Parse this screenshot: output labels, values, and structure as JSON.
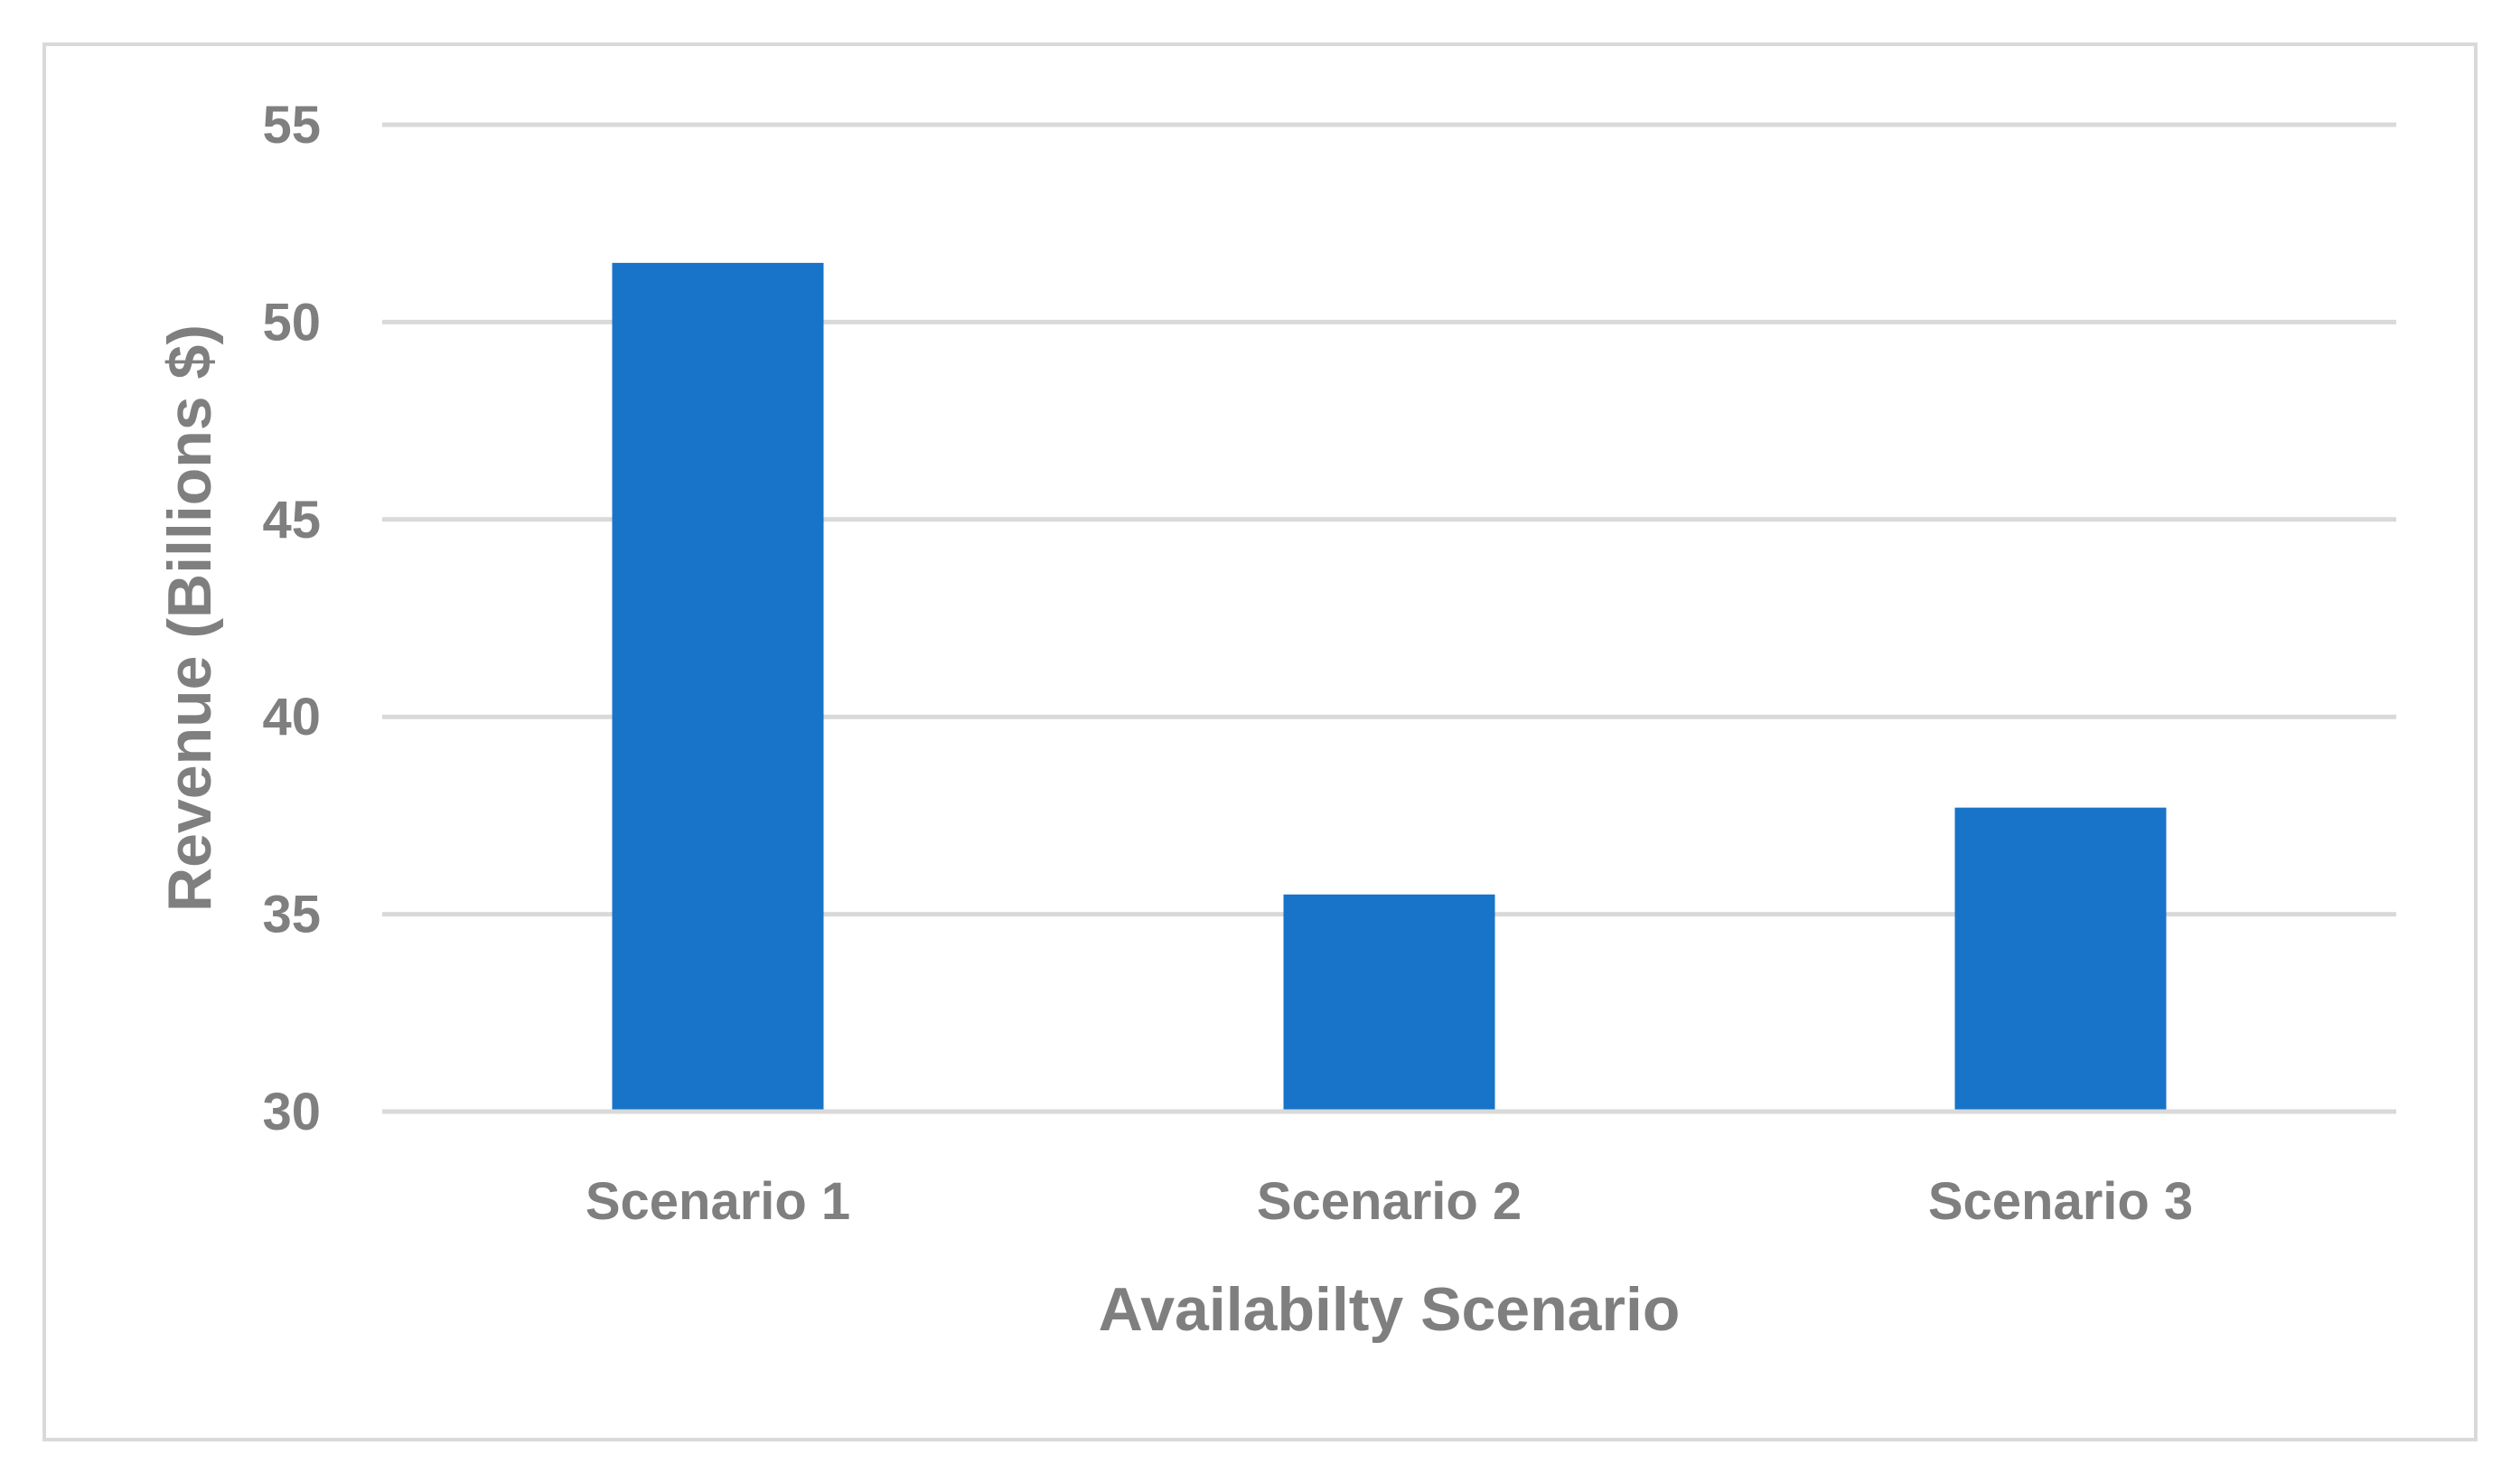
{
  "chart_data": {
    "type": "bar",
    "categories": [
      "Scenario 1",
      "Scenario 2",
      "Scenario 3"
    ],
    "values": [
      51.5,
      35.5,
      37.7
    ],
    "title": "",
    "xlabel": "Availabilty Scenario",
    "ylabel": "Revenue (Billions $)",
    "ylim": [
      30,
      55
    ],
    "yticks": [
      "30",
      "35",
      "40",
      "45",
      "50",
      "55"
    ],
    "grid": true,
    "legend": "none",
    "bar_color": "#1874c8",
    "grid_color": "#d9d9d9",
    "text_color": "#7f7f7f"
  }
}
